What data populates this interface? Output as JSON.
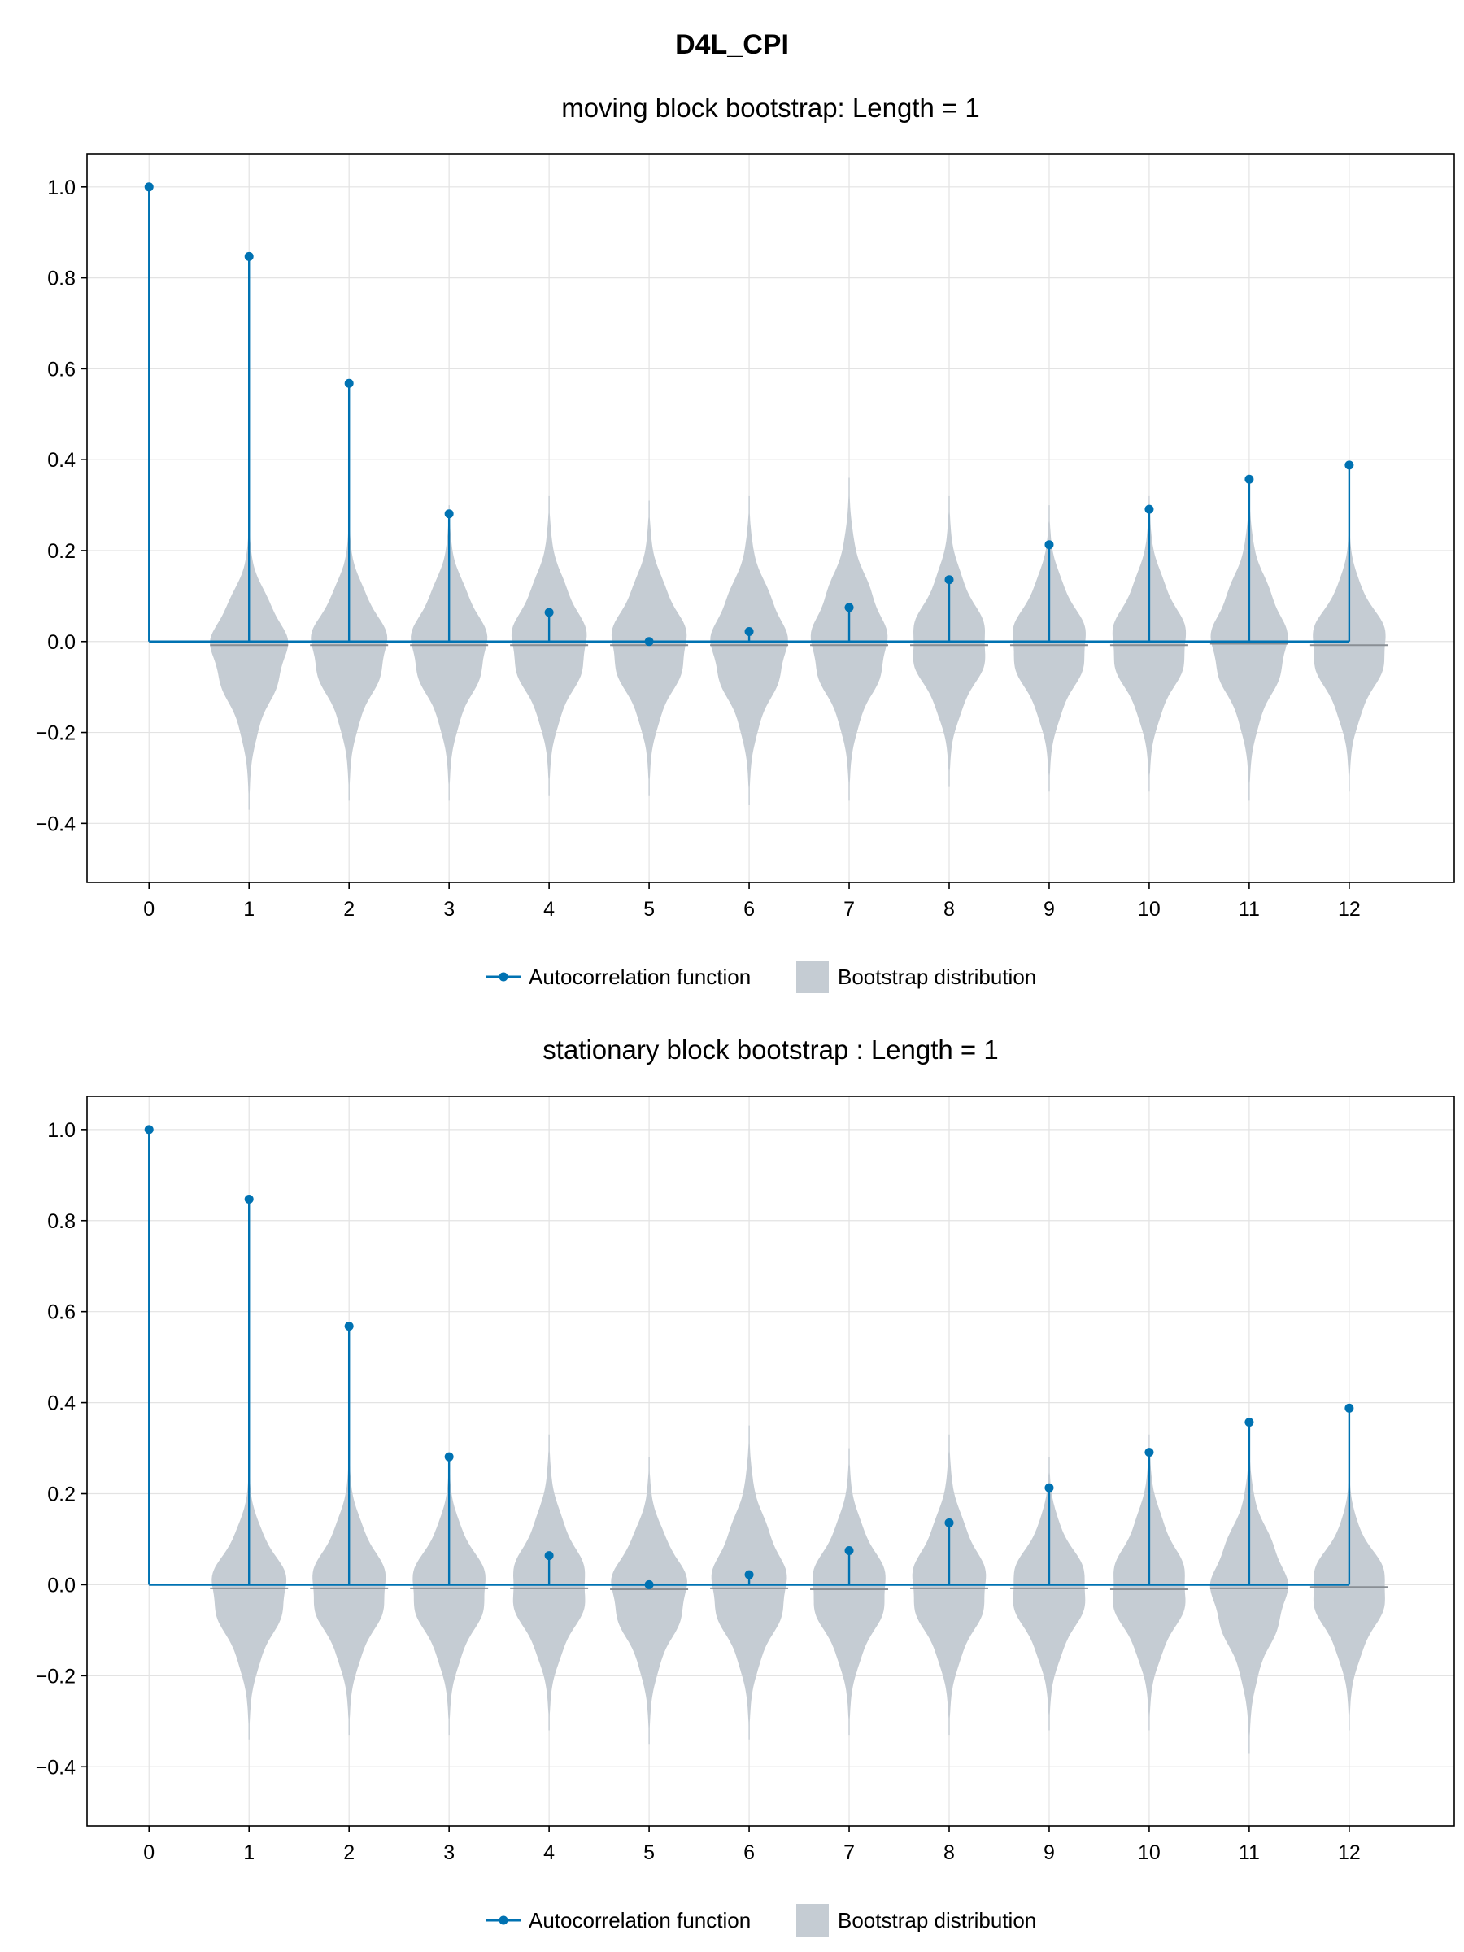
{
  "figure": {
    "title": "D4L_CPI"
  },
  "colors": {
    "acf": "#0072b2",
    "bootstrap": "#c5ccd3",
    "bootstrap_center": "#8a8f95",
    "grid": "#e3e3e3",
    "frame": "#000000"
  },
  "chart_data": [
    {
      "type": "stem+violin",
      "title": "moving block bootstrap: Length = 1",
      "x": [
        0,
        1,
        2,
        3,
        4,
        5,
        6,
        7,
        8,
        9,
        10,
        11,
        12
      ],
      "xticks": [
        "0",
        "1",
        "2",
        "3",
        "4",
        "5",
        "6",
        "7",
        "8",
        "9",
        "10",
        "11",
        "12"
      ],
      "yticks": [
        "−0.4",
        "−0.2",
        "0.0",
        "0.2",
        "0.4",
        "0.6",
        "0.8",
        "1.0"
      ],
      "ytick_values": [
        -0.4,
        -0.2,
        0.0,
        0.2,
        0.4,
        0.6,
        0.8,
        1.0
      ],
      "xlim": [
        -0.62,
        13.05
      ],
      "ylim": [
        -0.53,
        1.073
      ],
      "grid": true,
      "legend_position": "bottom-center",
      "series": [
        {
          "name": "Autocorrelation function",
          "values": [
            1.0,
            0.847,
            0.568,
            0.281,
            0.064,
            0.0,
            0.022,
            0.075,
            0.136,
            0.213,
            0.291,
            0.357,
            0.388
          ]
        },
        {
          "name": "Bootstrap distribution",
          "violins": [
            {
              "x": 1,
              "center": -0.008,
              "min": -0.37,
              "max": 0.27
            },
            {
              "x": 2,
              "center": -0.008,
              "min": -0.35,
              "max": 0.28
            },
            {
              "x": 3,
              "center": -0.008,
              "min": -0.35,
              "max": 0.3
            },
            {
              "x": 4,
              "center": -0.008,
              "min": -0.34,
              "max": 0.32
            },
            {
              "x": 5,
              "center": -0.008,
              "min": -0.34,
              "max": 0.31
            },
            {
              "x": 6,
              "center": -0.008,
              "min": -0.36,
              "max": 0.32
            },
            {
              "x": 7,
              "center": -0.008,
              "min": -0.35,
              "max": 0.36
            },
            {
              "x": 8,
              "center": -0.008,
              "min": -0.32,
              "max": 0.32
            },
            {
              "x": 9,
              "center": -0.008,
              "min": -0.33,
              "max": 0.3
            },
            {
              "x": 10,
              "center": -0.008,
              "min": -0.33,
              "max": 0.32
            },
            {
              "x": 11,
              "center": -0.005,
              "min": -0.35,
              "max": 0.34
            },
            {
              "x": 12,
              "center": -0.008,
              "min": -0.33,
              "max": 0.27
            }
          ]
        }
      ]
    },
    {
      "type": "stem+violin",
      "title": "stationary block bootstrap : Length = 1",
      "x": [
        0,
        1,
        2,
        3,
        4,
        5,
        6,
        7,
        8,
        9,
        10,
        11,
        12
      ],
      "xticks": [
        "0",
        "1",
        "2",
        "3",
        "4",
        "5",
        "6",
        "7",
        "8",
        "9",
        "10",
        "11",
        "12"
      ],
      "yticks": [
        "−0.4",
        "−0.2",
        "0.0",
        "0.2",
        "0.4",
        "0.6",
        "0.8",
        "1.0"
      ],
      "ytick_values": [
        -0.4,
        -0.2,
        0.0,
        0.2,
        0.4,
        0.6,
        0.8,
        1.0
      ],
      "xlim": [
        -0.62,
        13.05
      ],
      "ylim": [
        -0.53,
        1.073
      ],
      "grid": true,
      "legend_position": "bottom-center",
      "series": [
        {
          "name": "Autocorrelation function",
          "values": [
            1.0,
            0.847,
            0.568,
            0.281,
            0.064,
            0.0,
            0.022,
            0.075,
            0.136,
            0.213,
            0.291,
            0.357,
            0.388
          ]
        },
        {
          "name": "Bootstrap distribution",
          "violins": [
            {
              "x": 1,
              "center": -0.008,
              "min": -0.34,
              "max": 0.27
            },
            {
              "x": 2,
              "center": -0.008,
              "min": -0.33,
              "max": 0.3
            },
            {
              "x": 3,
              "center": -0.008,
              "min": -0.33,
              "max": 0.28
            },
            {
              "x": 4,
              "center": -0.008,
              "min": -0.32,
              "max": 0.33
            },
            {
              "x": 5,
              "center": -0.01,
              "min": -0.35,
              "max": 0.28
            },
            {
              "x": 6,
              "center": -0.008,
              "min": -0.34,
              "max": 0.35
            },
            {
              "x": 7,
              "center": -0.01,
              "min": -0.33,
              "max": 0.3
            },
            {
              "x": 8,
              "center": -0.008,
              "min": -0.33,
              "max": 0.33
            },
            {
              "x": 9,
              "center": -0.008,
              "min": -0.32,
              "max": 0.28
            },
            {
              "x": 10,
              "center": -0.01,
              "min": -0.32,
              "max": 0.33
            },
            {
              "x": 11,
              "center": -0.008,
              "min": -0.37,
              "max": 0.32
            },
            {
              "x": 12,
              "center": -0.005,
              "min": -0.32,
              "max": 0.26
            }
          ]
        }
      ]
    }
  ]
}
